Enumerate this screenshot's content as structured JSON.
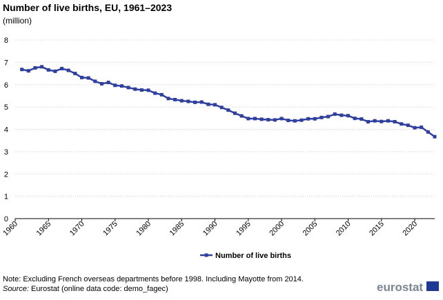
{
  "chart_data": {
    "type": "line",
    "title": "Number of live births, EU, 1961–2023",
    "subtitle": "(million)",
    "x": [
      1961,
      1962,
      1963,
      1964,
      1965,
      1966,
      1967,
      1968,
      1969,
      1970,
      1971,
      1972,
      1973,
      1974,
      1975,
      1976,
      1977,
      1978,
      1979,
      1980,
      1981,
      1982,
      1983,
      1984,
      1985,
      1986,
      1987,
      1988,
      1989,
      1990,
      1991,
      1992,
      1993,
      1994,
      1995,
      1996,
      1997,
      1998,
      1999,
      2000,
      2001,
      2002,
      2003,
      2004,
      2005,
      2006,
      2007,
      2008,
      2009,
      2010,
      2011,
      2012,
      2013,
      2014,
      2015,
      2016,
      2017,
      2018,
      2019,
      2020,
      2021,
      2022,
      2023
    ],
    "series": [
      {
        "name": "Number of live births",
        "color": "#2e3f9e",
        "values": [
          6.68,
          6.62,
          6.75,
          6.8,
          6.66,
          6.6,
          6.72,
          6.64,
          6.5,
          6.32,
          6.3,
          6.15,
          6.04,
          6.1,
          5.97,
          5.94,
          5.87,
          5.8,
          5.76,
          5.75,
          5.62,
          5.55,
          5.38,
          5.33,
          5.28,
          5.25,
          5.21,
          5.22,
          5.12,
          5.1,
          4.98,
          4.86,
          4.72,
          4.6,
          4.48,
          4.48,
          4.45,
          4.43,
          4.42,
          4.48,
          4.4,
          4.38,
          4.41,
          4.47,
          4.47,
          4.53,
          4.57,
          4.68,
          4.63,
          4.61,
          4.49,
          4.46,
          4.34,
          4.38,
          4.35,
          4.38,
          4.34,
          4.24,
          4.18,
          4.07,
          4.09,
          3.88,
          3.67
        ]
      }
    ],
    "xlim": [
      1960,
      2023
    ],
    "xticks": [
      1960,
      1965,
      1970,
      1975,
      1980,
      1985,
      1990,
      1995,
      2000,
      2005,
      2010,
      2015,
      2020
    ],
    "ylim": [
      0,
      8
    ],
    "yticks": [
      0,
      1,
      2,
      3,
      4,
      5,
      6,
      7,
      8
    ],
    "grid": true,
    "legend": "bottom",
    "note": "Note: Excluding French overseas departments before 1998. Including Mayotte from 2014.",
    "source_label": "Source:",
    "source": " Eurostat (online data code: demo_fagec)",
    "logo_text": "eurostat"
  }
}
